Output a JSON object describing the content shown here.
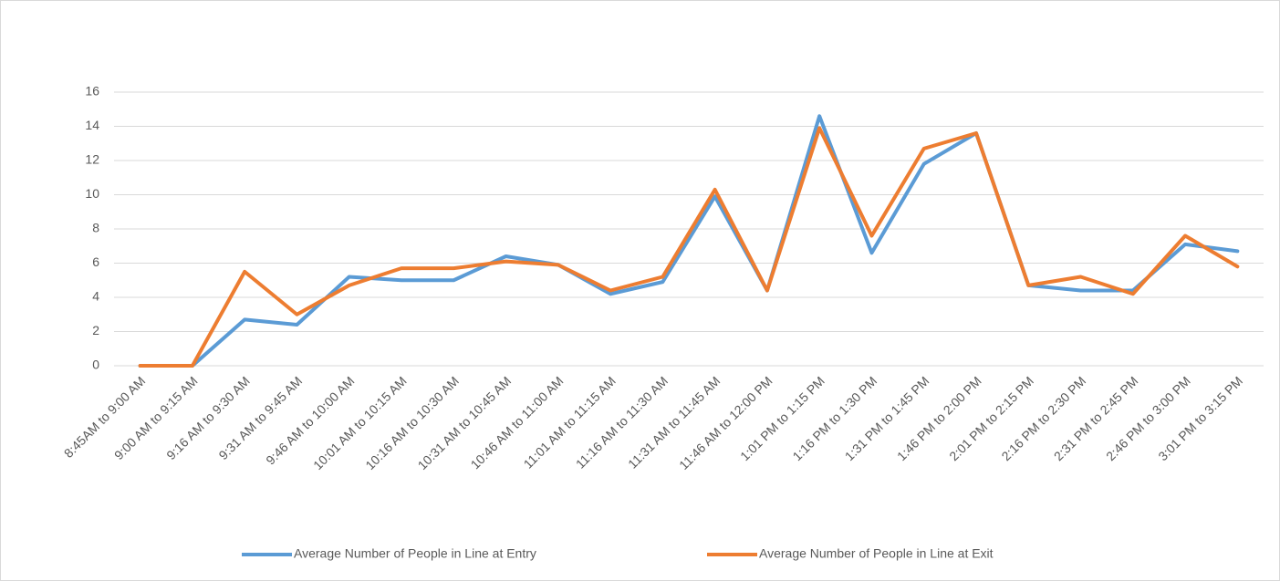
{
  "chart_data": {
    "type": "line",
    "categories": [
      "8:45AM to 9:00 AM",
      "9:00 AM to 9:15 AM",
      "9:16 AM to 9:30 AM",
      "9:31 AM to 9:45 AM",
      "9:46 AM to 10:00 AM",
      "10:01 AM to 10:15 AM",
      "10:16 AM to 10:30 AM",
      "10:31 AM to 10:45 AM",
      "10:46 AM to 11:00 AM",
      "11:01 AM to 11:15 AM",
      "11:16 AM to 11:30 AM",
      "11:31 AM to 11:45 AM",
      "11:46 AM to 12:00 PM",
      "1:01 PM to 1:15 PM",
      "1:16 PM to 1:30 PM",
      "1:31 PM to 1:45 PM",
      "1:46 PM to 2:00 PM",
      "2:01 PM to 2:15 PM",
      "2:16 PM to 2:30 PM",
      "2:31 PM to 2:45 PM",
      "2:46 PM to 3:00 PM",
      "3:01 PM to 3:15 PM"
    ],
    "series": [
      {
        "name": "Average Number of People in Line at Entry",
        "color": "#5b9bd5",
        "values": [
          0,
          0,
          2.7,
          2.4,
          5.2,
          5.0,
          5.0,
          6.4,
          5.9,
          4.2,
          4.9,
          9.9,
          4.4,
          14.6,
          6.6,
          11.8,
          13.6,
          4.7,
          4.4,
          4.4,
          7.1,
          6.7
        ]
      },
      {
        "name": "Average Number of People in Line at Exit",
        "color": "#ed7d31",
        "values": [
          0,
          0,
          5.5,
          3.0,
          4.7,
          5.7,
          5.7,
          6.1,
          5.9,
          4.4,
          5.2,
          10.3,
          4.4,
          13.9,
          7.6,
          12.7,
          13.6,
          4.7,
          5.2,
          4.2,
          7.6,
          5.8
        ]
      }
    ],
    "ylim": [
      0,
      16
    ],
    "yticks": [
      0,
      2,
      4,
      6,
      8,
      10,
      12,
      14,
      16
    ],
    "grid": true,
    "legend": "bottom"
  }
}
